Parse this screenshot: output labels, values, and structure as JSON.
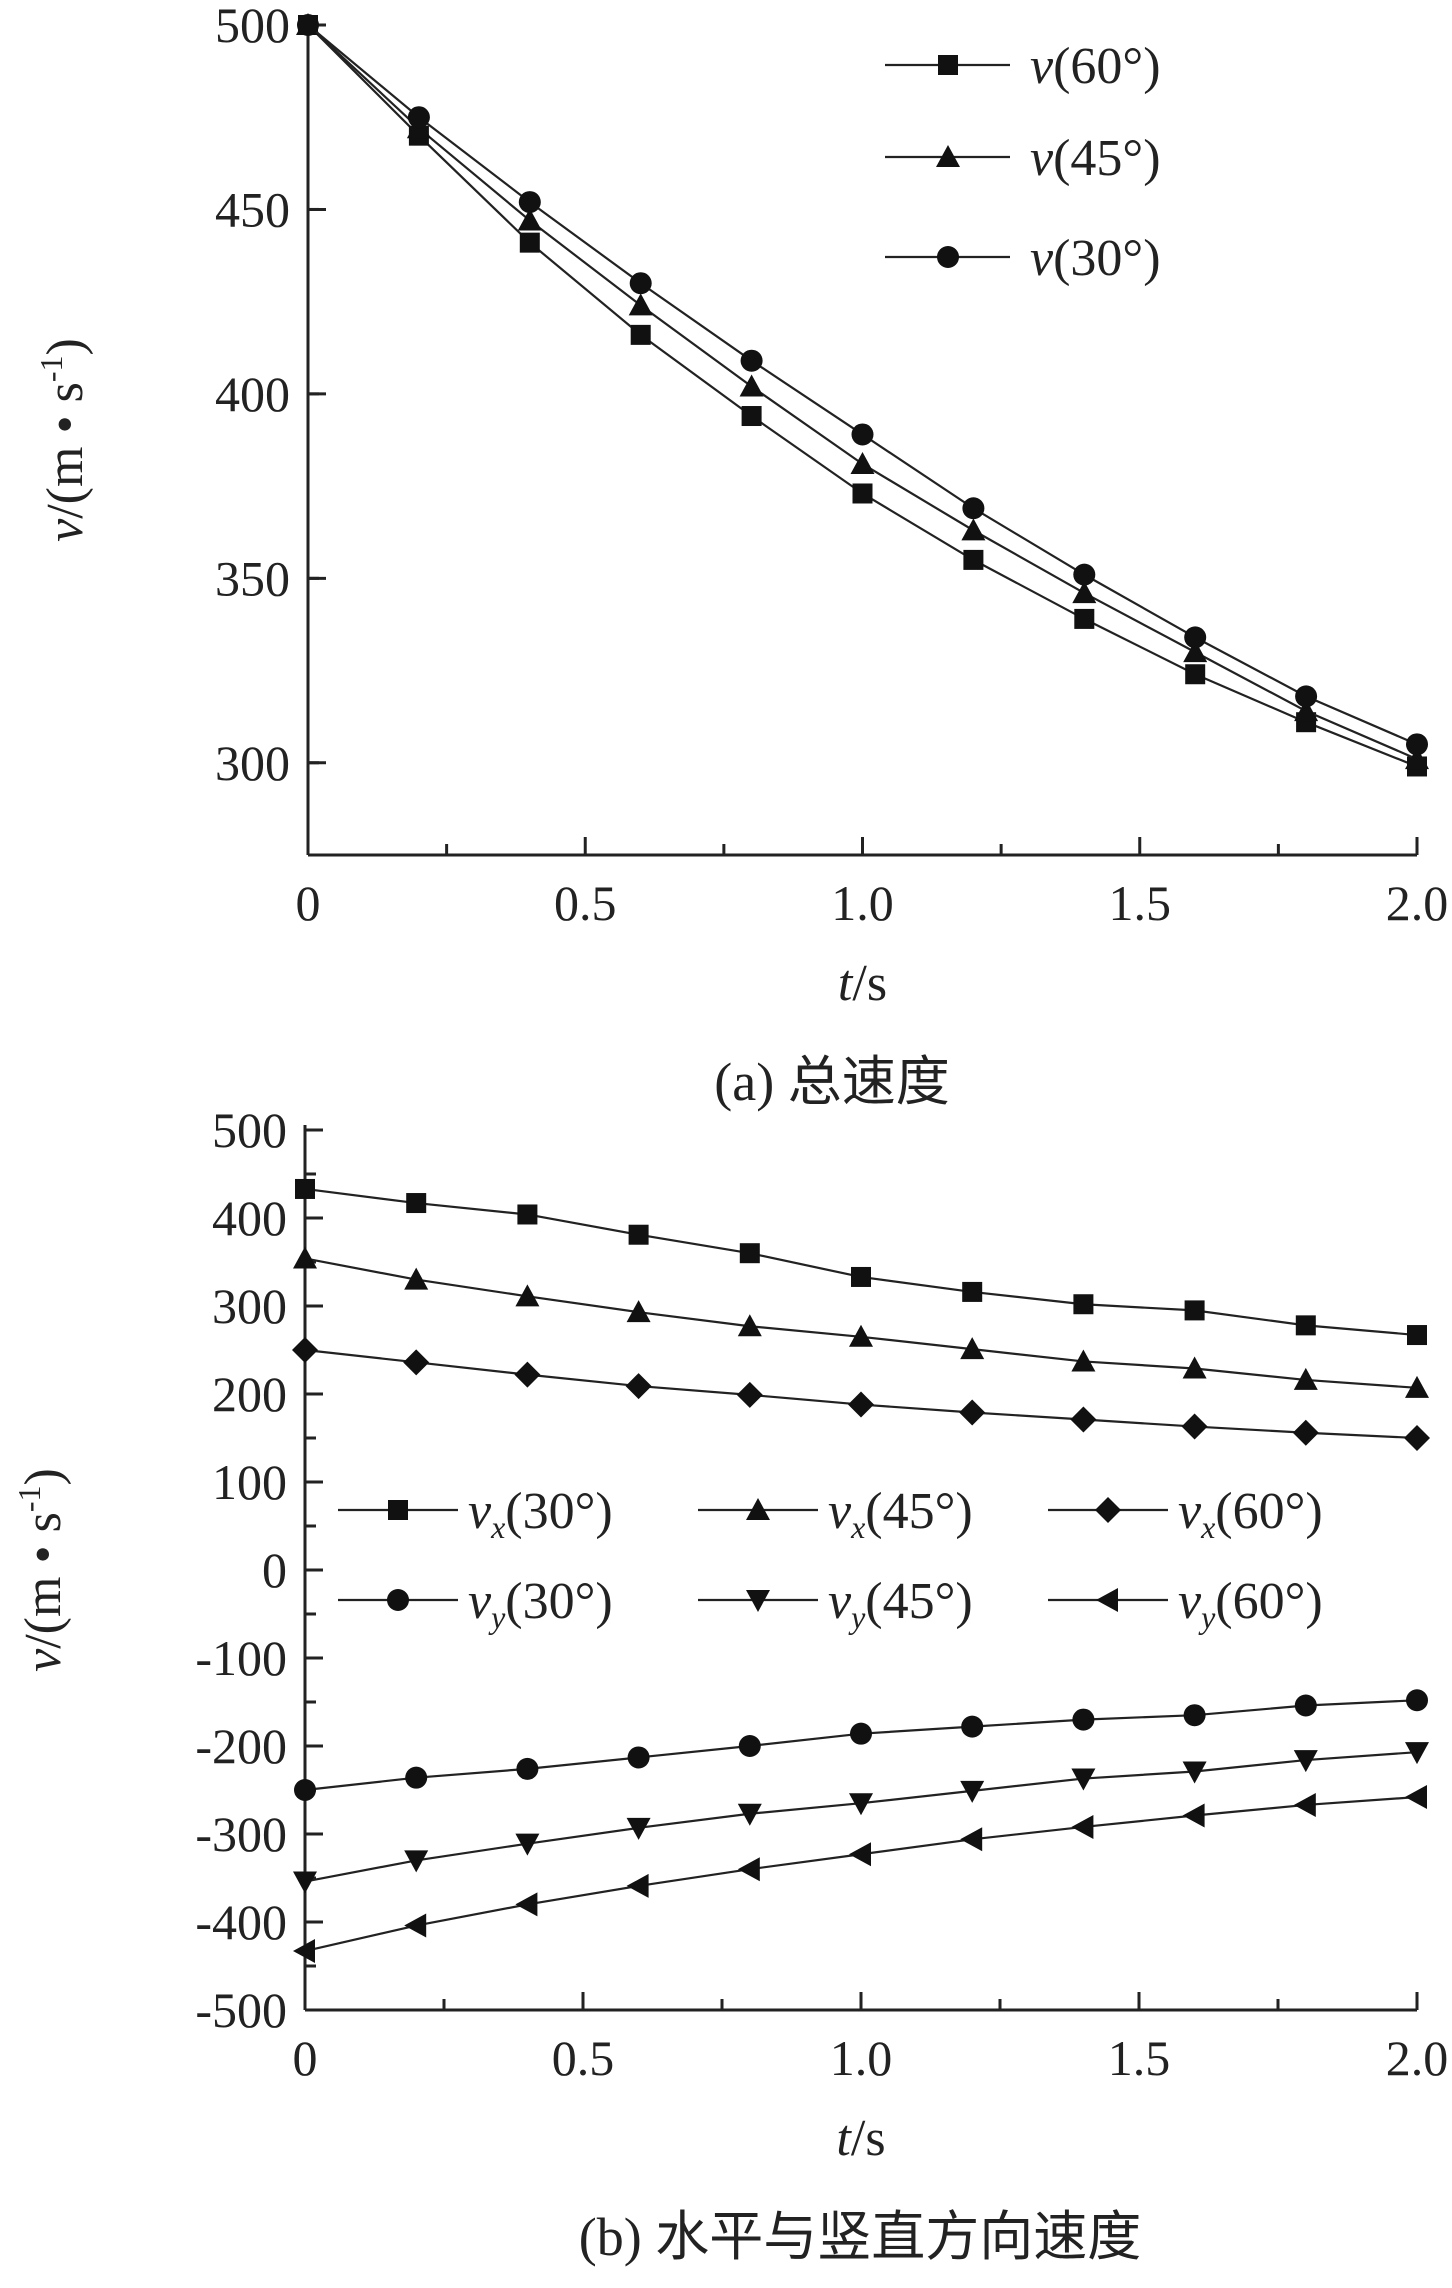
{
  "chart_data": [
    {
      "type": "line",
      "caption": "(a)  总速度",
      "xlabel": "t/s",
      "ylabel": "v/(m • s-1)",
      "xlim": [
        0,
        2.0
      ],
      "ylim": [
        275,
        500
      ],
      "xticks": [
        "0",
        "0.5",
        "1.0",
        "1.5",
        "2.0"
      ],
      "yticks": [
        "300",
        "350",
        "400",
        "450",
        "500"
      ],
      "grid": false,
      "legend_position": "top-right",
      "x": [
        0,
        0.2,
        0.4,
        0.6,
        0.8,
        1.0,
        1.2,
        1.4,
        1.6,
        1.8,
        2.0
      ],
      "series": [
        {
          "name": "v(60°)",
          "marker": "square",
          "values": [
            500,
            470,
            441,
            416,
            394,
            373,
            355,
            339,
            324,
            311,
            299
          ]
        },
        {
          "name": "v(45°)",
          "marker": "triangle",
          "values": [
            500,
            472,
            447,
            424,
            402,
            381,
            363,
            346,
            330,
            314,
            301
          ]
        },
        {
          "name": "v(30°)",
          "marker": "circle",
          "values": [
            500,
            475,
            452,
            430,
            409,
            389,
            369,
            351,
            334,
            318,
            305
          ]
        }
      ]
    },
    {
      "type": "line",
      "caption": "(b)  水平与竖直方向速度",
      "xlabel": "t/s",
      "ylabel": "v/(m • s-1)",
      "xlim": [
        0,
        2.0
      ],
      "ylim": [
        -500,
        500
      ],
      "xticks": [
        "0",
        "0.5",
        "1.0",
        "1.5",
        "2.0"
      ],
      "yticks": [
        "500",
        "400",
        "300",
        "200",
        "100",
        "0",
        "-100",
        "-200",
        "-300",
        "-400",
        "-500"
      ],
      "grid": false,
      "legend_position": "center",
      "x": [
        0,
        0.2,
        0.4,
        0.6,
        0.8,
        1.0,
        1.2,
        1.4,
        1.6,
        1.8,
        2.0
      ],
      "series": [
        {
          "name": "vx(30°)",
          "marker": "square",
          "values": [
            433,
            417,
            404,
            381,
            360,
            333,
            316,
            302,
            295,
            278,
            267
          ]
        },
        {
          "name": "vx(45°)",
          "marker": "triangle",
          "values": [
            354,
            330,
            311,
            293,
            277,
            265,
            251,
            237,
            229,
            216,
            207
          ]
        },
        {
          "name": "vx(60°)",
          "marker": "diamond",
          "values": [
            250,
            236,
            222,
            209,
            199,
            188,
            179,
            171,
            163,
            156,
            150
          ]
        },
        {
          "name": "vy(30°)",
          "marker": "circle",
          "values": [
            -250,
            -236,
            -226,
            -213,
            -200,
            -186,
            -178,
            -170,
            -165,
            -154,
            -148
          ]
        },
        {
          "name": "vy(45°)",
          "marker": "triangle-down",
          "values": [
            -354,
            -330,
            -311,
            -293,
            -277,
            -265,
            -251,
            -237,
            -229,
            -216,
            -207
          ]
        },
        {
          "name": "vy(60°)",
          "marker": "triangle-left",
          "values": [
            -433,
            -404,
            -380,
            -359,
            -340,
            -323,
            -306,
            -292,
            -279,
            -267,
            -258
          ]
        }
      ]
    }
  ]
}
